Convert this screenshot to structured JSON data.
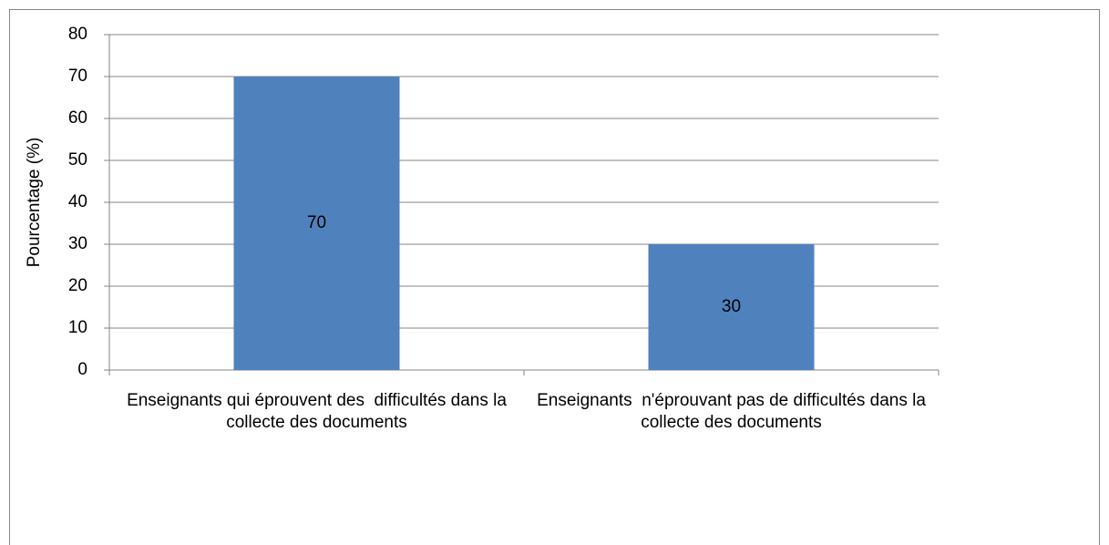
{
  "chart_data": {
    "type": "bar",
    "y_axis_label": "Pourcentage (%)",
    "categories": [
      "Enseignants qui éprouvent des  difficultés dans la collecte des documents",
      "Enseignants  n'éprouvant pas de difficultés dans la collecte des documents"
    ],
    "values": [
      70,
      30
    ],
    "color": "#4f81bd",
    "ylim": [
      0,
      80
    ],
    "yticks": [
      0,
      10,
      20,
      30,
      40,
      50,
      60,
      70,
      80
    ],
    "grid": true
  }
}
